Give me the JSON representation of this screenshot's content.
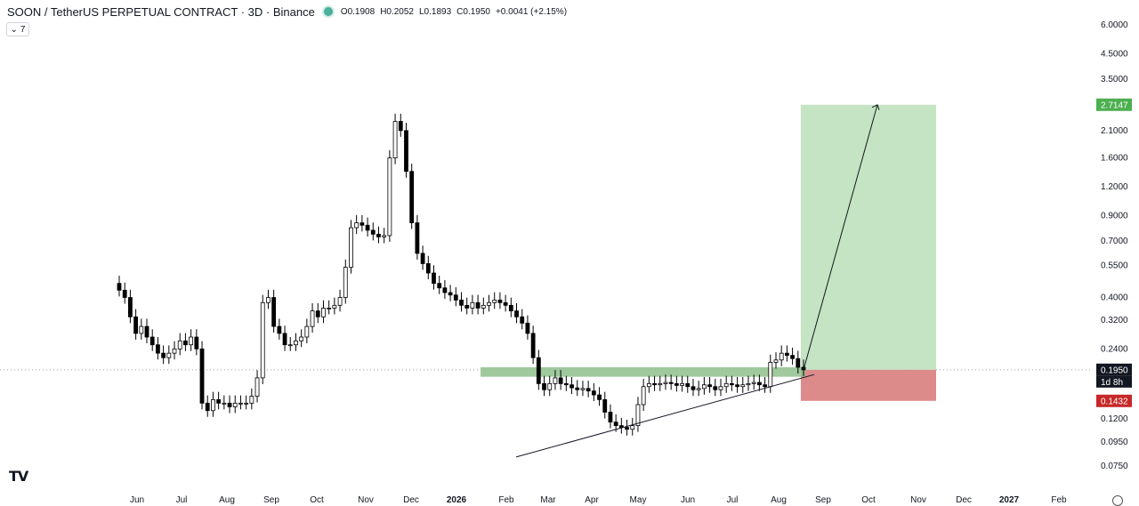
{
  "header": {
    "title": "SOON / TetherUS PERPETUAL CONTRACT · 3D · Binance",
    "open": "O0.1908",
    "high": "H0.2052",
    "low": "L0.1893",
    "close": "C0.1950",
    "change": "+0.0041 (+2.15%)"
  },
  "collapse_label": "7",
  "logo_text": "TV",
  "colors": {
    "candle_up": "#ffffff",
    "candle_down": "#000000",
    "candle_outline": "#000000",
    "target_zone": "#c5e4c3",
    "stop_zone": "#dd8a8a",
    "support_zone": "#8fbf8d",
    "target_badge": "#4caf50",
    "stop_badge": "#c62828",
    "price_badge": "#131722"
  },
  "chart_data": {
    "type": "candlestick",
    "y_scale": "log",
    "ylim": [
      0.07,
      6.2
    ],
    "y_ticks": [
      "6.0000",
      "4.5000",
      "3.5000",
      "2.7000",
      "2.1000",
      "1.6000",
      "1.2000",
      "0.9000",
      "0.7000",
      "0.5500",
      "0.4000",
      "0.3200",
      "0.2400",
      "0.1900",
      "0.1450",
      "0.1200",
      "0.0950",
      "0.0750"
    ],
    "x_ticks": [
      "Jun",
      "Jul",
      "Aug",
      "Sep",
      "Oct",
      "Nov",
      "Dec",
      "2026",
      "Feb",
      "Mar",
      "Apr",
      "May",
      "Jun",
      "Jul",
      "Aug",
      "Sep",
      "Oct",
      "Nov",
      "Dec",
      "2027",
      "Feb"
    ],
    "price_labels": {
      "target": "2.7147",
      "current": "0.1950",
      "countdown": "1d 8h",
      "stop": "0.1432"
    },
    "position": {
      "entry": 0.195,
      "target": 2.7147,
      "stop": 0.1432
    },
    "support_zone": [
      0.182,
      0.2
    ],
    "trendline": [
      [
        0.082,
        0.186
      ]
    ],
    "closes": [
      0.43,
      0.4,
      0.33,
      0.28,
      0.3,
      0.27,
      0.25,
      0.23,
      0.22,
      0.23,
      0.24,
      0.26,
      0.25,
      0.27,
      0.24,
      0.14,
      0.13,
      0.145,
      0.14,
      0.14,
      0.135,
      0.14,
      0.14,
      0.14,
      0.15,
      0.18,
      0.38,
      0.4,
      0.3,
      0.28,
      0.25,
      0.25,
      0.26,
      0.27,
      0.3,
      0.35,
      0.33,
      0.36,
      0.36,
      0.37,
      0.4,
      0.54,
      0.8,
      0.84,
      0.82,
      0.78,
      0.75,
      0.73,
      0.74,
      1.6,
      2.3,
      2.1,
      1.4,
      0.84,
      0.62,
      0.56,
      0.51,
      0.46,
      0.44,
      0.42,
      0.41,
      0.39,
      0.37,
      0.36,
      0.38,
      0.36,
      0.37,
      0.38,
      0.39,
      0.38,
      0.37,
      0.35,
      0.33,
      0.31,
      0.28,
      0.22,
      0.17,
      0.16,
      0.17,
      0.18,
      0.17,
      0.168,
      0.163,
      0.16,
      0.162,
      0.158,
      0.152,
      0.145,
      0.128,
      0.116,
      0.112,
      0.11,
      0.108,
      0.112,
      0.138,
      0.165,
      0.17,
      0.168,
      0.17,
      0.172,
      0.17,
      0.167,
      0.17,
      0.165,
      0.16,
      0.162,
      0.168,
      0.165,
      0.16,
      0.165,
      0.17,
      0.168,
      0.165,
      0.168,
      0.17,
      0.172,
      0.168,
      0.165,
      0.21,
      0.215,
      0.23,
      0.225,
      0.218,
      0.2,
      0.195
    ]
  }
}
